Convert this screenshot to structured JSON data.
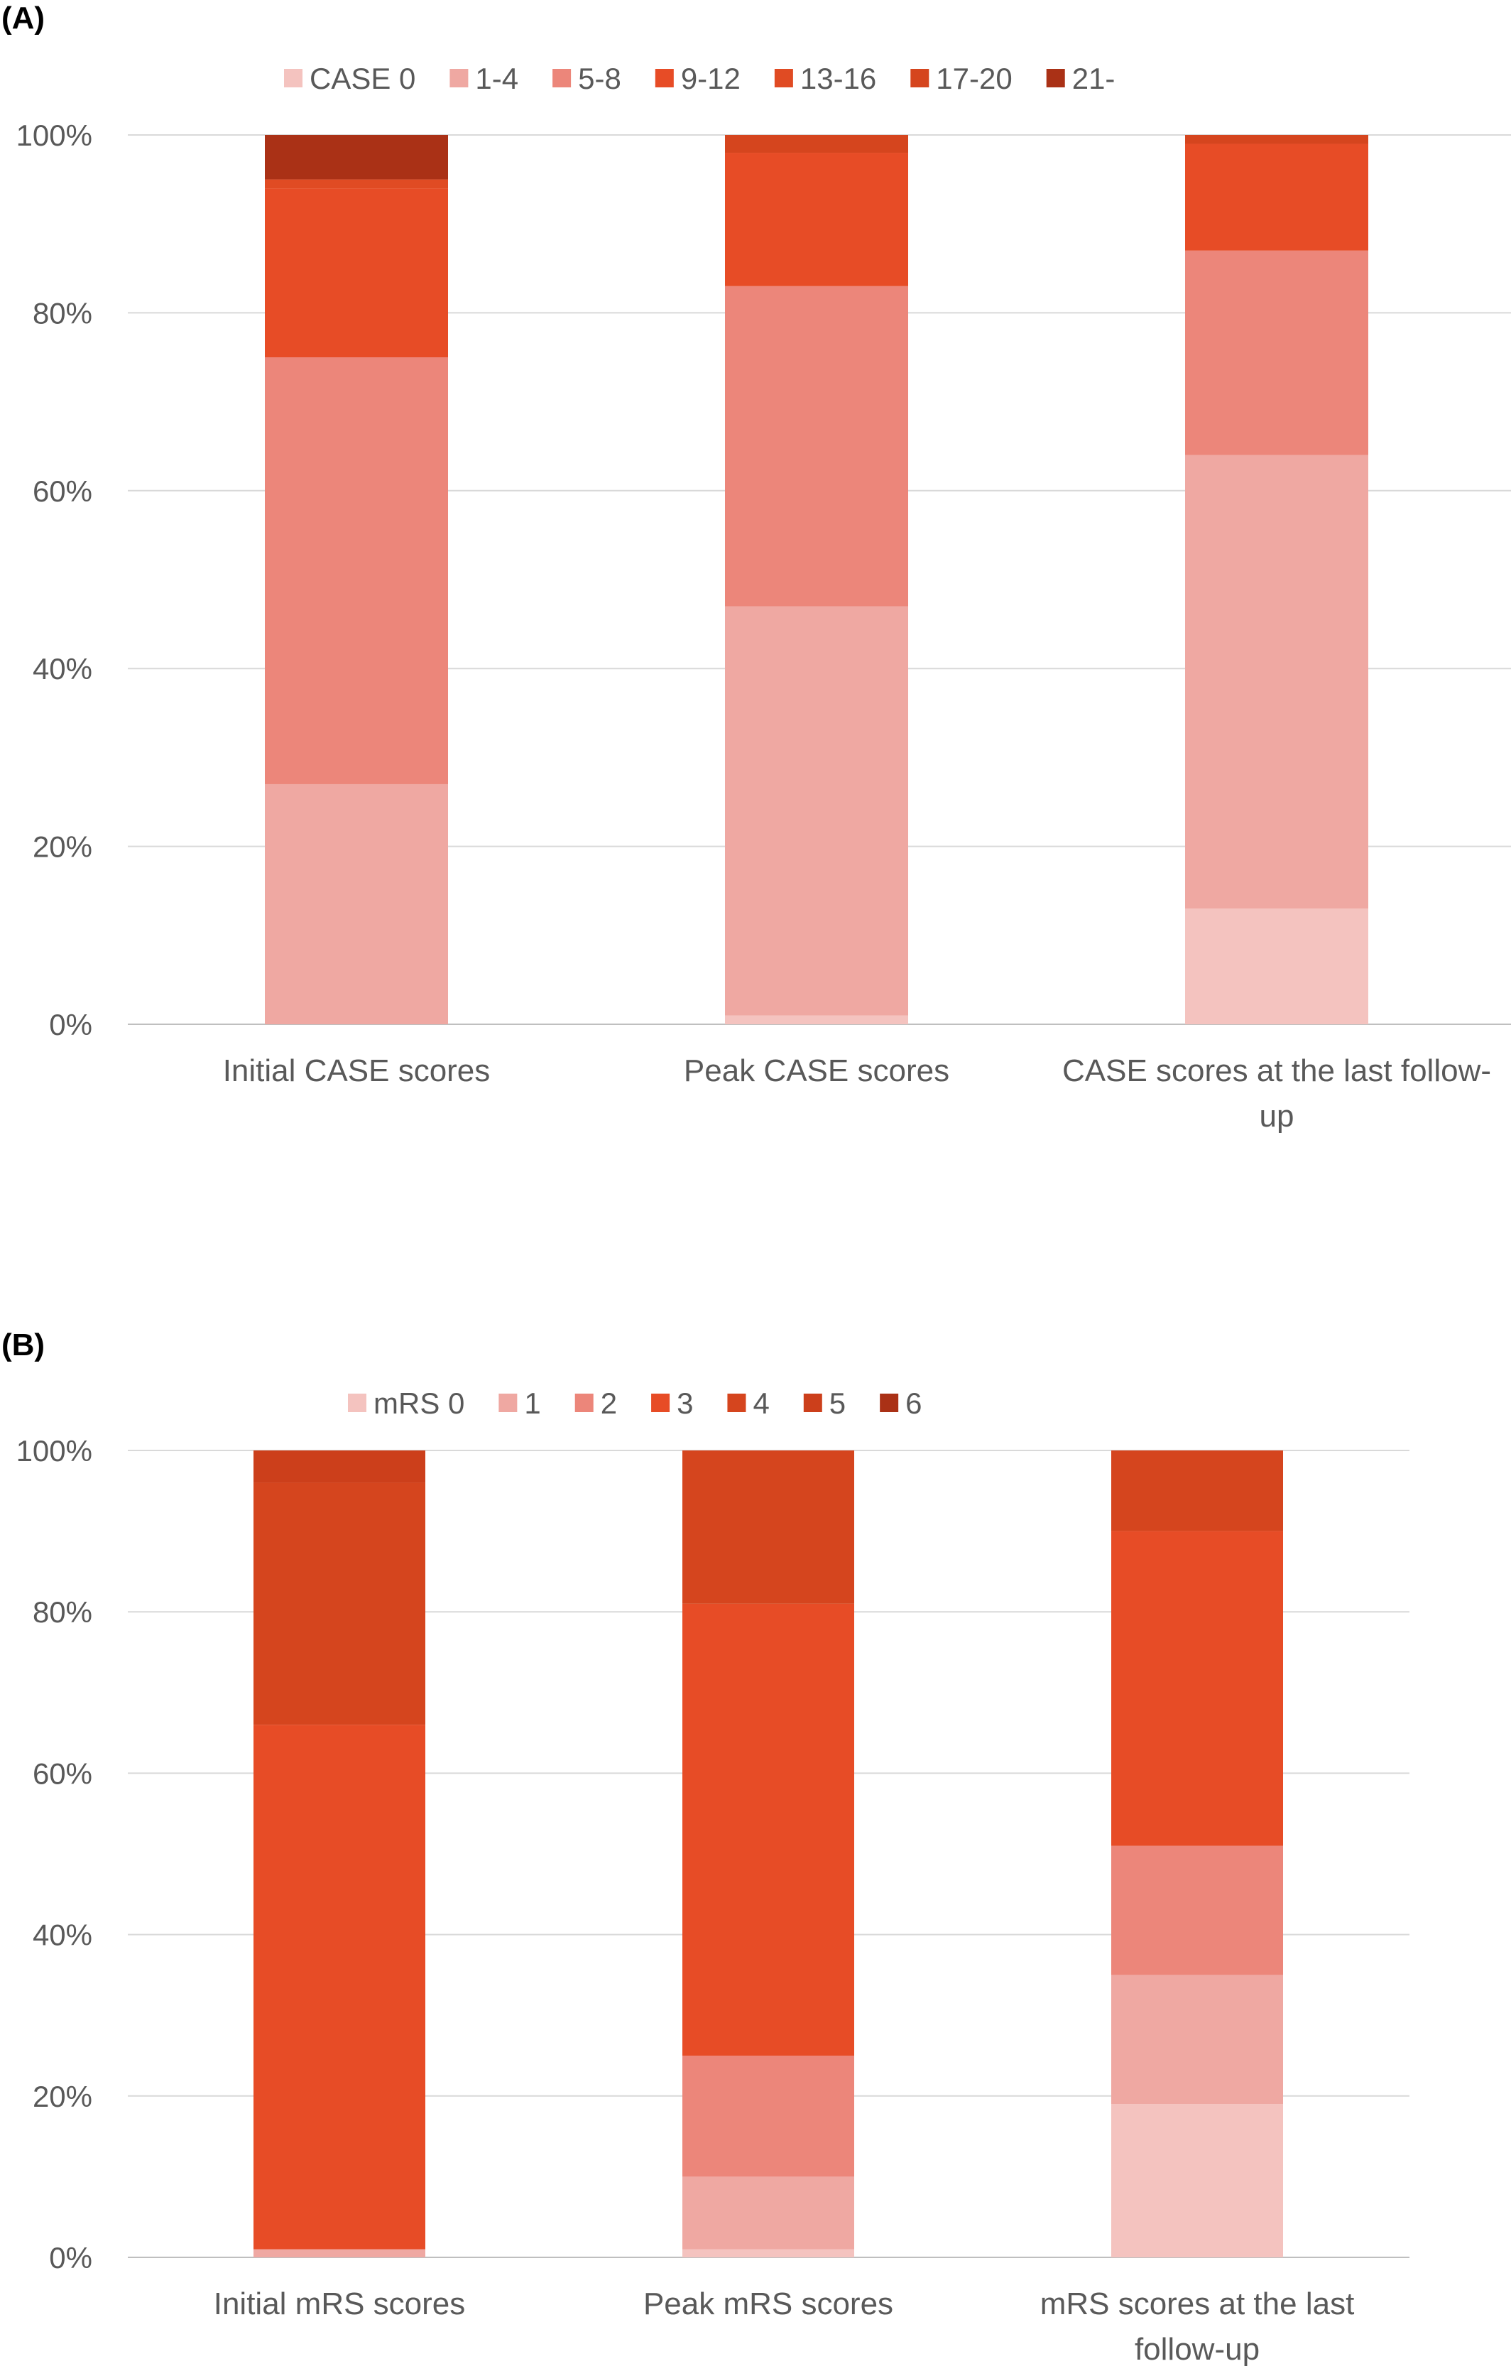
{
  "chart_data": [
    {
      "type": "bar",
      "stacked": true,
      "normalized": true,
      "panel_label": "(A)",
      "categories": [
        "Initial CASE scores",
        "Peak CASE scores",
        "CASE scores at the last follow-up"
      ],
      "category_lines": [
        [
          "Initial CASE scores"
        ],
        [
          "Peak CASE scores"
        ],
        [
          "CASE scores at the last follow-",
          "up"
        ]
      ],
      "series": [
        {
          "name": "CASE 0",
          "color": "#F4C3BF",
          "values": [
            0,
            1,
            13
          ]
        },
        {
          "name": "1-4",
          "color": "#EFA8A2",
          "values": [
            27,
            46,
            51
          ]
        },
        {
          "name": "5-8",
          "color": "#EC867A",
          "values": [
            48,
            36,
            23
          ]
        },
        {
          "name": "9-12",
          "color": "#E74C26",
          "values": [
            19,
            15,
            12
          ]
        },
        {
          "name": "13-16",
          "color": "#E04B23",
          "values": [
            1,
            0,
            0
          ]
        },
        {
          "name": "17-20",
          "color": "#D5451E",
          "values": [
            0,
            2,
            1
          ]
        },
        {
          "name": "21-",
          "color": "#AA3116",
          "values": [
            5,
            0,
            0
          ]
        }
      ],
      "ylim": [
        0,
        100
      ],
      "yticks": [
        "0%",
        "20%",
        "40%",
        "60%",
        "80%",
        "100%"
      ],
      "grid": true,
      "legend": "top"
    },
    {
      "type": "bar",
      "stacked": true,
      "normalized": true,
      "panel_label": "(B)",
      "categories": [
        "Initial mRS scores",
        "Peak mRS scores",
        "mRS scores at the last follow-up"
      ],
      "category_lines": [
        [
          "Initial mRS scores"
        ],
        [
          "Peak mRS scores"
        ],
        [
          "mRS scores at the last",
          "follow-up"
        ]
      ],
      "series": [
        {
          "name": "mRS 0",
          "color": "#F4C3BF",
          "values": [
            0,
            1,
            19
          ]
        },
        {
          "name": "1",
          "color": "#EFA8A2",
          "values": [
            1,
            9,
            16
          ]
        },
        {
          "name": "2",
          "color": "#EC867A",
          "values": [
            0,
            15,
            16
          ]
        },
        {
          "name": "3",
          "color": "#E74C26",
          "values": [
            65,
            56,
            39
          ]
        },
        {
          "name": "4",
          "color": "#D5451E",
          "values": [
            30,
            19,
            10
          ]
        },
        {
          "name": "5",
          "color": "#CC3F1B",
          "values": [
            4,
            0,
            0
          ]
        },
        {
          "name": "6",
          "color": "#AA3116",
          "values": [
            0,
            0,
            0
          ]
        }
      ],
      "ylim": [
        0,
        100
      ],
      "yticks": [
        "0%",
        "20%",
        "40%",
        "60%",
        "80%",
        "100%"
      ],
      "grid": true,
      "legend": "top"
    }
  ]
}
